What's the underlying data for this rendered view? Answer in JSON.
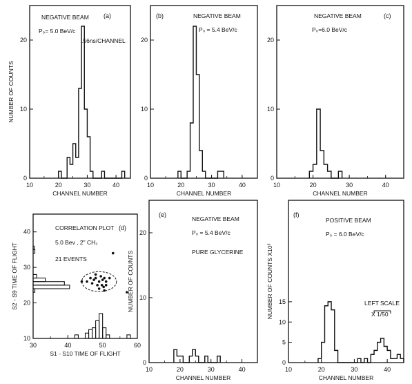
{
  "chart_data": [
    {
      "id": "a",
      "type": "histogram",
      "panel_label": "(a)",
      "title": "NEGATIVE BEAM",
      "subtitle": "P₀= 5.0 BeV/c",
      "annotation": ".56ns/CHANNEL",
      "xlabel": "CHANNEL NUMBER",
      "ylabel": "NUMBER OF COUNTS",
      "xlim": [
        10,
        45
      ],
      "ylim": [
        0,
        25
      ],
      "xticks": [
        10,
        20,
        30,
        40
      ],
      "yticks": [
        0,
        10,
        20
      ],
      "bins": [
        {
          "x": 20,
          "count": 1
        },
        {
          "x": 23,
          "count": 3
        },
        {
          "x": 24,
          "count": 2
        },
        {
          "x": 25,
          "count": 5
        },
        {
          "x": 26,
          "count": 3
        },
        {
          "x": 27,
          "count": 13
        },
        {
          "x": 28,
          "count": 22
        },
        {
          "x": 29,
          "count": 10
        },
        {
          "x": 30,
          "count": 6
        },
        {
          "x": 31,
          "count": 1
        },
        {
          "x": 35,
          "count": 1
        },
        {
          "x": 42,
          "count": 1
        }
      ]
    },
    {
      "id": "b",
      "type": "histogram",
      "panel_label": "(b)",
      "title": "NEGATIVE BEAM",
      "subtitle": "P₀ = 5.4 BeV/c",
      "xlabel": "CHANNEL NUMBER",
      "ylabel": "",
      "xlim": [
        10,
        45
      ],
      "ylim": [
        0,
        25
      ],
      "xticks": [
        10,
        20,
        30,
        40
      ],
      "yticks": [
        0,
        10,
        20
      ],
      "bins": [
        {
          "x": 19,
          "count": 1
        },
        {
          "x": 22,
          "count": 1
        },
        {
          "x": 23,
          "count": 8
        },
        {
          "x": 24,
          "count": 22
        },
        {
          "x": 25,
          "count": 15
        },
        {
          "x": 26,
          "count": 4
        },
        {
          "x": 27,
          "count": 1
        },
        {
          "x": 32,
          "count": 1
        },
        {
          "x": 33,
          "count": 1
        }
      ]
    },
    {
      "id": "c",
      "type": "histogram",
      "panel_label": "(c)",
      "title": "NEGATIVE BEAM",
      "subtitle": "P₀=6.0 BeV/c",
      "xlabel": "CHANNEL NUMBER",
      "ylabel": "",
      "xlim": [
        10,
        45
      ],
      "ylim": [
        0,
        25
      ],
      "xticks": [
        10,
        20,
        30,
        40
      ],
      "yticks": [
        0,
        10,
        20
      ],
      "bins": [
        {
          "x": 19,
          "count": 1
        },
        {
          "x": 20,
          "count": 2
        },
        {
          "x": 21,
          "count": 10
        },
        {
          "x": 22,
          "count": 4
        },
        {
          "x": 23,
          "count": 2
        },
        {
          "x": 24,
          "count": 1
        },
        {
          "x": 27,
          "count": 1
        }
      ]
    },
    {
      "id": "d",
      "type": "scatter",
      "panel_label": "(d)",
      "title": "CORRELATION PLOT",
      "subtitle": "5.0 Bev , 2\" CH₂",
      "annotation": "21 EVENTS",
      "xlabel": "S1 - S10 TIME OF FLIGHT",
      "ylabel": "S2 - S9    TIME OF FLIGHT",
      "xlim": [
        30,
        60
      ],
      "ylim": [
        10,
        45
      ],
      "xticks": [
        30,
        40,
        50,
        60
      ],
      "yticks": [
        10,
        20,
        30,
        40
      ],
      "points": [
        {
          "x": 44,
          "y": 26
        },
        {
          "x": 45.5,
          "y": 26
        },
        {
          "x": 46.5,
          "y": 27
        },
        {
          "x": 47,
          "y": 25.5
        },
        {
          "x": 47.5,
          "y": 26.5
        },
        {
          "x": 48,
          "y": 27
        },
        {
          "x": 48.5,
          "y": 25
        },
        {
          "x": 49,
          "y": 26
        },
        {
          "x": 49.5,
          "y": 27.5
        },
        {
          "x": 49.8,
          "y": 25
        },
        {
          "x": 50,
          "y": 26.5
        },
        {
          "x": 50.3,
          "y": 24.5
        },
        {
          "x": 50.5,
          "y": 27
        },
        {
          "x": 51,
          "y": 26
        },
        {
          "x": 51,
          "y": 25
        },
        {
          "x": 49,
          "y": 24
        },
        {
          "x": 48,
          "y": 28
        },
        {
          "x": 52,
          "y": 27
        },
        {
          "x": 53,
          "y": 34
        },
        {
          "x": 57,
          "y": 23
        },
        {
          "x": 50.5,
          "y": 23.5
        }
      ],
      "cluster_ellipse": {
        "cx": 49,
        "cy": 26,
        "rx": 5,
        "ry": 2.8
      },
      "projection_y": [
        {
          "y": 23,
          "len": 0.5
        },
        {
          "y": 24,
          "len": 10.5
        },
        {
          "y": 25,
          "len": 9
        },
        {
          "y": 26,
          "len": 3.5
        },
        {
          "y": 27,
          "len": 1
        },
        {
          "y": 34,
          "len": 0.5
        },
        {
          "y": 35,
          "len": 0.3
        }
      ],
      "projection_x": [
        {
          "x": 42,
          "h": 1
        },
        {
          "x": 45,
          "h": 1.5
        },
        {
          "x": 46,
          "h": 2.5
        },
        {
          "x": 47,
          "h": 3
        },
        {
          "x": 48,
          "h": 5
        },
        {
          "x": 49,
          "h": 7
        },
        {
          "x": 50,
          "h": 3
        },
        {
          "x": 51,
          "h": 1
        },
        {
          "x": 57,
          "h": 1
        }
      ]
    },
    {
      "id": "e",
      "type": "histogram",
      "panel_label": "(e)",
      "title": "NEGATIVE BEAM",
      "subtitle": "P₀ = 5.4 BeV/c",
      "annotation": "PURE GLYCERINE",
      "xlabel": "CHANNEL NUMBER",
      "ylabel": "NUMBER OF COUNTS",
      "xlim": [
        10,
        45
      ],
      "ylim": [
        0,
        25
      ],
      "xticks": [
        10,
        20,
        30,
        40
      ],
      "yticks": [
        0,
        10,
        20
      ],
      "bins": [
        {
          "x": 18,
          "count": 2
        },
        {
          "x": 19,
          "count": 1
        },
        {
          "x": 20,
          "count": 1
        },
        {
          "x": 23,
          "count": 1
        },
        {
          "x": 24,
          "count": 2
        },
        {
          "x": 25,
          "count": 1
        },
        {
          "x": 28,
          "count": 1
        },
        {
          "x": 32,
          "count": 1
        }
      ]
    },
    {
      "id": "f",
      "type": "histogram",
      "panel_label": "(f)",
      "title": "POSITIVE BEAM",
      "subtitle": "P₀ = 6.0 BeV/c",
      "annotation": "LEFT SCALE",
      "annotation2": "X 1/50",
      "xlabel": "CHANNEL NUMBER",
      "ylabel": "NUMBER OF COUNTS X10³",
      "xlim": [
        10,
        45
      ],
      "ylim": [
        0,
        40
      ],
      "xticks": [
        10,
        20,
        30,
        40
      ],
      "yticks": [
        0,
        5,
        10,
        15
      ],
      "bins": [
        {
          "x": 19,
          "count": 1
        },
        {
          "x": 20,
          "count": 5
        },
        {
          "x": 21,
          "count": 14
        },
        {
          "x": 22,
          "count": 15
        },
        {
          "x": 23,
          "count": 13
        },
        {
          "x": 24,
          "count": 3
        },
        {
          "x": 31,
          "count": 1
        },
        {
          "x": 33,
          "count": 1
        },
        {
          "x": 35,
          "count": 2
        },
        {
          "x": 36,
          "count": 3
        },
        {
          "x": 37,
          "count": 5
        },
        {
          "x": 38,
          "count": 6
        },
        {
          "x": 39,
          "count": 4
        },
        {
          "x": 40,
          "count": 3
        },
        {
          "x": 41,
          "count": 1
        },
        {
          "x": 42,
          "count": 1
        },
        {
          "x": 43,
          "count": 2
        },
        {
          "x": 44,
          "count": 1
        }
      ]
    }
  ]
}
